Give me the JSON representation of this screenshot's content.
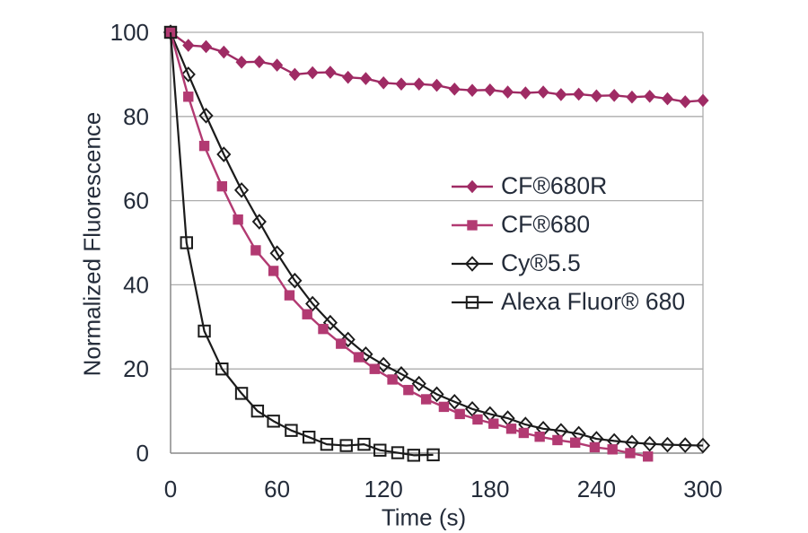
{
  "chart_data": {
    "type": "line",
    "title": "",
    "xlabel": "Time (s)",
    "ylabel": "Normalized Fluorescence",
    "xlim": [
      0,
      300
    ],
    "ylim": [
      0,
      100
    ],
    "xticks": [
      0,
      60,
      120,
      180,
      240,
      300
    ],
    "yticks": [
      0,
      20,
      40,
      60,
      80,
      100
    ],
    "grid": "horizontal",
    "legend_position": "center-right",
    "style": {
      "background": "#ffffff",
      "grid_color": "#adadad",
      "axis_color": "#8f8f8f",
      "text_color": "#242c3a"
    },
    "series": [
      {
        "name": "CF®680R",
        "color": "#9f2b64",
        "marker": "diamond-filled",
        "line_width": 2.4,
        "points": [
          [
            0,
            100
          ],
          [
            10,
            96.9
          ],
          [
            20,
            96.6
          ],
          [
            30,
            95.3
          ],
          [
            40,
            92.9
          ],
          [
            50,
            93.0
          ],
          [
            60,
            92.2
          ],
          [
            70,
            90.0
          ],
          [
            80,
            90.4
          ],
          [
            90,
            90.5
          ],
          [
            100,
            89.3
          ],
          [
            110,
            89.0
          ],
          [
            120,
            88.0
          ],
          [
            130,
            87.7
          ],
          [
            140,
            87.7
          ],
          [
            150,
            87.4
          ],
          [
            160,
            86.5
          ],
          [
            170,
            86.2
          ],
          [
            180,
            86.3
          ],
          [
            190,
            85.8
          ],
          [
            200,
            85.6
          ],
          [
            210,
            85.8
          ],
          [
            220,
            85.2
          ],
          [
            230,
            85.3
          ],
          [
            240,
            84.9
          ],
          [
            250,
            85.0
          ],
          [
            260,
            84.6
          ],
          [
            270,
            84.8
          ],
          [
            280,
            84.2
          ],
          [
            290,
            83.5
          ],
          [
            300,
            83.8
          ]
        ]
      },
      {
        "name": "CF®680",
        "color": "#b23a72",
        "marker": "square-filled",
        "line_width": 2.4,
        "points": [
          [
            0,
            100
          ],
          [
            10,
            84.7
          ],
          [
            19,
            73.0
          ],
          [
            29,
            63.4
          ],
          [
            38,
            55.5
          ],
          [
            48,
            48.2
          ],
          [
            58,
            43.3
          ],
          [
            67,
            37.5
          ],
          [
            77,
            33.0
          ],
          [
            86,
            29.5
          ],
          [
            96,
            26.0
          ],
          [
            106,
            22.8
          ],
          [
            115,
            20.0
          ],
          [
            125,
            17.5
          ],
          [
            134,
            15.0
          ],
          [
            144,
            12.8
          ],
          [
            154,
            11.0
          ],
          [
            163,
            9.3
          ],
          [
            173,
            8.0
          ],
          [
            182,
            7.0
          ],
          [
            192,
            5.8
          ],
          [
            199,
            4.8
          ],
          [
            208,
            3.9
          ],
          [
            218,
            3.1
          ],
          [
            228,
            2.5
          ],
          [
            239,
            1.4
          ],
          [
            249,
            0.9
          ],
          [
            259,
            0.0
          ],
          [
            269,
            -0.8
          ]
        ]
      },
      {
        "name": "Cy®5.5",
        "color": "#1b1b1b",
        "marker": "diamond-open",
        "line_width": 2.2,
        "points": [
          [
            0,
            100
          ],
          [
            10,
            90.0
          ],
          [
            20,
            80.2
          ],
          [
            30,
            71.0
          ],
          [
            40,
            62.5
          ],
          [
            50,
            55.0
          ],
          [
            60,
            47.5
          ],
          [
            70,
            41.0
          ],
          [
            80,
            35.5
          ],
          [
            90,
            31.0
          ],
          [
            100,
            27.0
          ],
          [
            110,
            23.5
          ],
          [
            120,
            21.0
          ],
          [
            130,
            18.8
          ],
          [
            140,
            16.5
          ],
          [
            150,
            14.0
          ],
          [
            160,
            12.2
          ],
          [
            170,
            10.5
          ],
          [
            180,
            9.3
          ],
          [
            190,
            8.3
          ],
          [
            200,
            6.8
          ],
          [
            210,
            5.8
          ],
          [
            220,
            5.3
          ],
          [
            230,
            4.6
          ],
          [
            240,
            3.4
          ],
          [
            250,
            2.9
          ],
          [
            260,
            2.5
          ],
          [
            270,
            2.2
          ],
          [
            280,
            2.0
          ],
          [
            290,
            1.9
          ],
          [
            300,
            1.8
          ]
        ]
      },
      {
        "name": "Alexa Fluor® 680",
        "color": "#1b1b1b",
        "marker": "square-open",
        "line_width": 2.2,
        "points": [
          [
            0,
            100
          ],
          [
            9,
            50.0
          ],
          [
            19,
            29.0
          ],
          [
            29,
            20.0
          ],
          [
            40,
            14.2
          ],
          [
            49,
            10.0
          ],
          [
            58,
            7.6
          ],
          [
            68,
            5.4
          ],
          [
            78,
            3.8
          ],
          [
            88,
            2.1
          ],
          [
            99,
            1.8
          ],
          [
            109,
            2.1
          ],
          [
            118,
            0.7
          ],
          [
            128,
            0.1
          ],
          [
            137,
            -0.5
          ],
          [
            148,
            -0.4
          ]
        ]
      }
    ]
  }
}
